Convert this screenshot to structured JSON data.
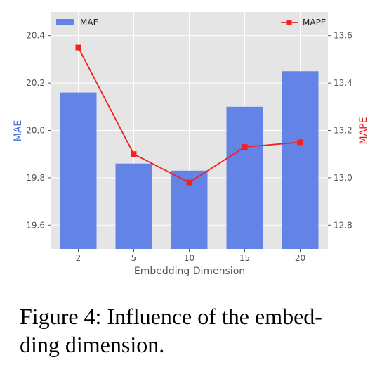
{
  "chart_data": {
    "type": "bar",
    "categories": [
      "2",
      "5",
      "10",
      "15",
      "20"
    ],
    "xlabel": "Embedding Dimension",
    "ylabel": "MAE",
    "ylabel_right": "MAPE",
    "ylim": [
      19.5,
      20.5
    ],
    "ylim_right": [
      12.7,
      13.7
    ],
    "yticks": [
      "19.6",
      "19.8",
      "20.0",
      "20.2",
      "20.4"
    ],
    "yticks_right": [
      "12.8",
      "13.0",
      "13.2",
      "13.4",
      "13.6"
    ],
    "grid": true,
    "series": [
      {
        "name": "MAE",
        "type": "bar",
        "axis": "left",
        "values": [
          20.16,
          19.86,
          19.83,
          20.1,
          20.25
        ]
      },
      {
        "name": "MAPE",
        "type": "line",
        "axis": "right",
        "values": [
          13.55,
          13.1,
          12.98,
          13.13,
          13.15
        ]
      }
    ],
    "legend": {
      "MAE": "top-left",
      "MAPE": "top-right"
    }
  },
  "colors": {
    "bar": "#6384e6",
    "line": "#ee2222",
    "mae_label": "#4a6fe0",
    "mape_label": "#e02020",
    "plot_bg": "#e5e5e5",
    "grid": "#ffffff"
  },
  "caption": {
    "line1": "Figure 4: Influence of the embed-",
    "line2": "ding dimension."
  }
}
